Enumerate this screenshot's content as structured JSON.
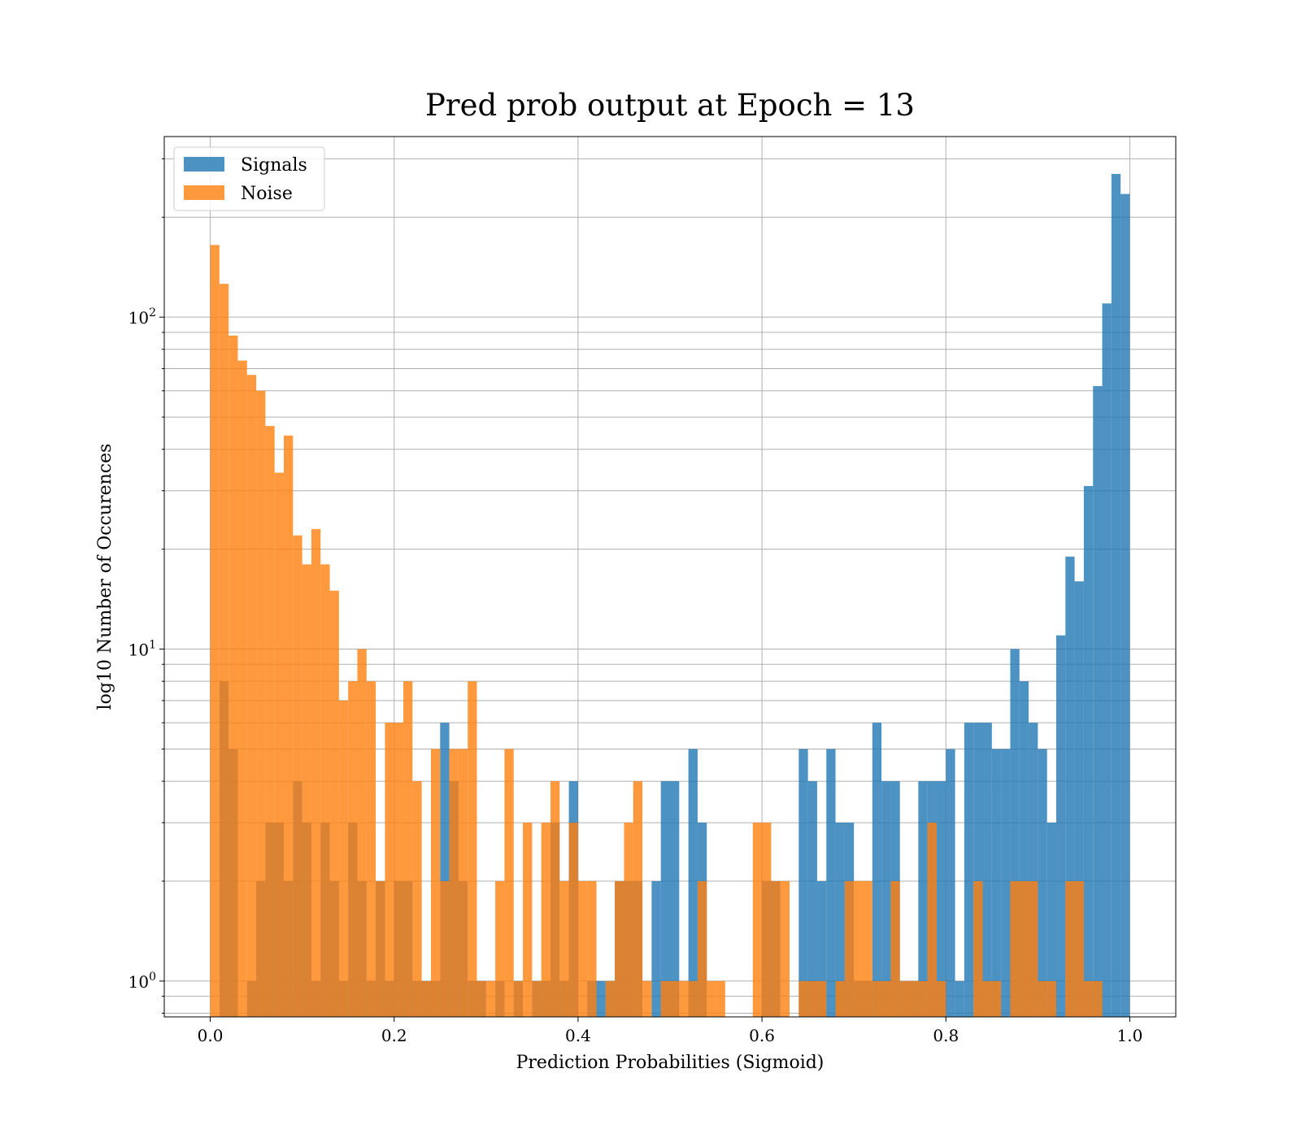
{
  "chart_data": {
    "type": "bar",
    "title": "Pred prob output at Epoch = 13",
    "xlabel": "Prediction Probabilities (Sigmoid)",
    "ylabel": "log10 Number of Occurences",
    "xlim": [
      -0.05,
      1.05
    ],
    "ylim": [
      0.78,
      350
    ],
    "yscale": "log",
    "grid": true,
    "legend_position": "upper-left",
    "x_ticks": [
      "0.0",
      "0.2",
      "0.4",
      "0.6",
      "0.8",
      "1.0"
    ],
    "y_ticks": [
      {
        "base": "10",
        "exp": "0",
        "value": 1
      },
      {
        "base": "10",
        "exp": "1",
        "value": 10
      },
      {
        "base": "10",
        "exp": "2",
        "value": 100
      }
    ],
    "series": [
      {
        "name": "Signals",
        "color": "#1f77b4",
        "opacity": 0.8,
        "bin_range": [
          0.0,
          1.0
        ],
        "num_bins": 100,
        "counts": [
          0,
          8,
          5,
          0,
          1,
          2,
          3,
          3,
          2,
          4,
          3,
          1,
          3,
          2,
          1,
          3,
          2,
          1,
          2,
          1,
          2,
          2,
          1,
          1,
          1,
          6,
          4,
          2,
          1,
          1,
          0,
          1,
          0,
          1,
          0,
          1,
          1,
          3,
          1,
          4,
          0,
          1,
          1,
          1,
          2,
          2,
          2,
          0,
          2,
          4,
          4,
          0,
          5,
          3,
          0,
          0,
          0,
          0,
          0,
          0,
          2,
          2,
          0,
          0,
          5,
          4,
          2,
          5,
          3,
          3,
          1,
          1,
          6,
          4,
          4,
          1,
          1,
          4,
          4,
          4,
          5,
          1,
          6,
          6,
          6,
          5,
          5,
          10,
          8,
          6,
          5,
          3,
          11,
          19,
          16,
          31,
          62,
          110,
          270,
          235
        ]
      },
      {
        "name": "Noise",
        "color": "#ff7f0e",
        "opacity": 0.8,
        "bin_range": [
          0.0,
          1.0
        ],
        "num_bins": 100,
        "counts": [
          165,
          126,
          88,
          74,
          67,
          60,
          47,
          34,
          44,
          22,
          18,
          23,
          18,
          15,
          7,
          8,
          10,
          8,
          2,
          6,
          6,
          8,
          4,
          1,
          5,
          2,
          5,
          5,
          8,
          1,
          1,
          2,
          5,
          1,
          3,
          1,
          3,
          4,
          2,
          3,
          2,
          2,
          0,
          1,
          2,
          3,
          4,
          1,
          0,
          1,
          1,
          1,
          1,
          2,
          1,
          1,
          0,
          0,
          0,
          3,
          3,
          2,
          2,
          0,
          1,
          1,
          1,
          0,
          1,
          2,
          2,
          2,
          1,
          1,
          2,
          1,
          1,
          1,
          3,
          1,
          0,
          0,
          0,
          2,
          1,
          1,
          0,
          2,
          2,
          2,
          1,
          1,
          0,
          2,
          2,
          1,
          1,
          0,
          0,
          0
        ]
      }
    ]
  }
}
